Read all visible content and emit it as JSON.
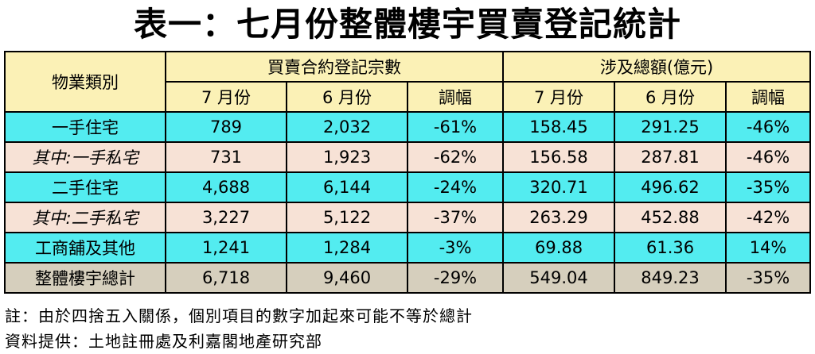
{
  "title": "表一：七月份整體樓宇買賣登記統計",
  "header": {
    "category": "物業類別",
    "group_count": "買賣合約登記宗數",
    "group_value": "涉及總額(億元)",
    "jul": "7 月份",
    "jun": "6 月份",
    "change": "調幅"
  },
  "rows": [
    {
      "label": "一手住宅",
      "c_jul": "789",
      "c_jun": "2,032",
      "c_chg": "-61%",
      "v_jul": "158.45",
      "v_jun": "291.25",
      "v_chg": "-46%"
    },
    {
      "label": "其中:一手私宅",
      "c_jul": "731",
      "c_jun": "1,923",
      "c_chg": "-62%",
      "v_jul": "156.58",
      "v_jun": "287.81",
      "v_chg": "-46%"
    },
    {
      "label": "二手住宅",
      "c_jul": "4,688",
      "c_jun": "6,144",
      "c_chg": "-24%",
      "v_jul": "320.71",
      "v_jun": "496.62",
      "v_chg": "-35%"
    },
    {
      "label": "其中:二手私宅",
      "c_jul": "3,227",
      "c_jun": "5,122",
      "c_chg": "-37%",
      "v_jul": "263.29",
      "v_jun": "452.88",
      "v_chg": "-42%"
    },
    {
      "label": "工商舖及其他",
      "c_jul": "1,241",
      "c_jun": "1,284",
      "c_chg": "-3%",
      "v_jul": "69.88",
      "v_jun": "61.36",
      "v_chg": "14%"
    },
    {
      "label": "整體樓宇總計",
      "c_jul": "6,718",
      "c_jun": "9,460",
      "c_chg": "-29%",
      "v_jul": "549.04",
      "v_jun": "849.23",
      "v_chg": "-35%"
    }
  ],
  "notes": {
    "note1": "註：由於四捨五入關係，個別項目的數字加起來可能不等於總計",
    "note2": "資料提供：土地註冊處及利嘉閣地產研究部"
  },
  "colors": {
    "header_bg": "#fbf1b6",
    "main_row_bg": "#53ecf0",
    "sub_row_bg": "#f7e2d6",
    "total_row_bg": "#d6cfbd"
  }
}
